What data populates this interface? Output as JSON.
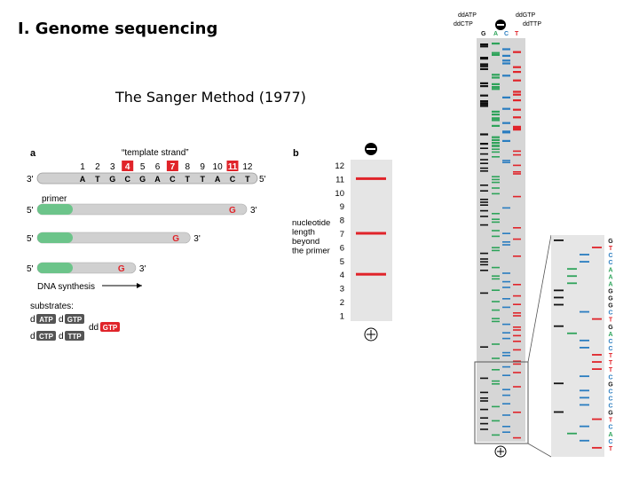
{
  "slide": {
    "title": "I. Genome sequencing",
    "subtitle": "The Sanger Method (1977)"
  },
  "panel_a": {
    "label": "a",
    "template_caption": "“template strand”",
    "positions": [
      "1",
      "2",
      "3",
      "4",
      "5",
      "6",
      "7",
      "8",
      "9",
      "10",
      "11",
      "12"
    ],
    "highlighted_positions": [
      "4",
      "7",
      "11"
    ],
    "template_bases": [
      "A",
      "T",
      "G",
      "C",
      "G",
      "A",
      "C",
      "T",
      "T",
      "A",
      "C",
      "T"
    ],
    "template_3_end": "3'",
    "template_5_end": "5'",
    "primer_label": "primer",
    "strands": [
      {
        "five": "5'",
        "terminator": "G",
        "three": "3'",
        "length": 1.0
      },
      {
        "five": "5'",
        "terminator": "G",
        "three": "3'",
        "length": 0.73
      },
      {
        "five": "5'",
        "terminator": "G",
        "three": "3'",
        "length": 0.47
      }
    ],
    "synthesis_label": "DNA synthesis",
    "substrates_label": "substrates:",
    "substrates": [
      {
        "prefix": "d",
        "name": "ATP"
      },
      {
        "prefix": "d",
        "name": "GTP"
      },
      {
        "prefix": "d",
        "name": "CTP"
      },
      {
        "prefix": "d",
        "name": "TTP"
      }
    ],
    "terminator_substrate": {
      "prefix": "dd",
      "name": "GTP"
    }
  },
  "panel_b": {
    "label": "b",
    "scale": [
      "12",
      "11",
      "10",
      "9",
      "8",
      "7",
      "6",
      "5",
      "4",
      "3",
      "2",
      "1"
    ],
    "caption_lines": [
      "nucleotide",
      "length",
      "beyond",
      "the primer"
    ],
    "band_positions": [
      11,
      7,
      4
    ],
    "minus_sign": "−",
    "plus_sign": "+"
  },
  "gel": {
    "header_top": [
      "ddATP",
      "ddGTP"
    ],
    "header_mid": [
      "ddCTP",
      "ddTTP"
    ],
    "lanes": [
      "G",
      "A",
      "C",
      "T"
    ],
    "minus_sign": "−",
    "plus_sign": "+",
    "zoom_sequence": [
      "G",
      "T",
      "C",
      "C",
      "A",
      "A",
      "A",
      "G",
      "G",
      "G",
      "C",
      "T",
      "G",
      "A",
      "C",
      "C",
      "T",
      "T",
      "T",
      "C",
      "G",
      "C",
      "C",
      "C",
      "G",
      "T",
      "C",
      "A",
      "C",
      "T"
    ]
  },
  "colors": {
    "red": "#e0242a",
    "green": "#2ea35a",
    "blue": "#2a7dc0",
    "black": "#111111",
    "primer_green": "#6cc48a",
    "strand_grey": "#d0d0d0",
    "gel_bg": "#d9d9d9"
  }
}
